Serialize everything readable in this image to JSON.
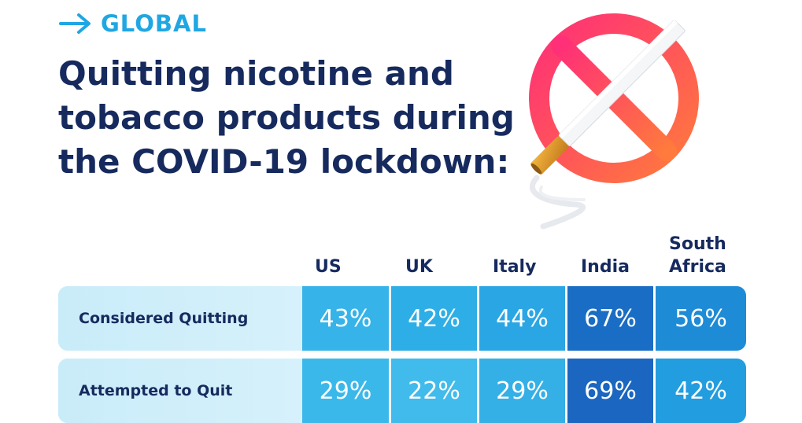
{
  "header": {
    "tag": "GLOBAL",
    "title_lines": [
      "Quitting nicotine and",
      "tobacco products during",
      "the COVID-19 lockdown:"
    ]
  },
  "illustration": {
    "icon": "no-smoking-icon"
  },
  "colors": {
    "accent": "#1fa7e3",
    "title": "#162a5e",
    "row_label_bg": "#c9ecf9",
    "cell_light": "#2eaee6",
    "cell_mid": "#1e95da",
    "cell_dark": "#1a6dc4",
    "prohibition_start": "#ff2f78",
    "prohibition_end": "#ff7a3c"
  },
  "chart_data": {
    "type": "table",
    "columns": [
      [
        "US"
      ],
      [
        "UK"
      ],
      [
        "Italy"
      ],
      [
        "India"
      ],
      [
        "South",
        "Africa"
      ]
    ],
    "rows": [
      {
        "label": "Considered Quitting",
        "values": [
          "43%",
          "42%",
          "44%",
          "67%",
          "56%"
        ]
      },
      {
        "label": "Attempted to Quit",
        "values": [
          "29%",
          "22%",
          "29%",
          "69%",
          "42%"
        ]
      }
    ]
  }
}
